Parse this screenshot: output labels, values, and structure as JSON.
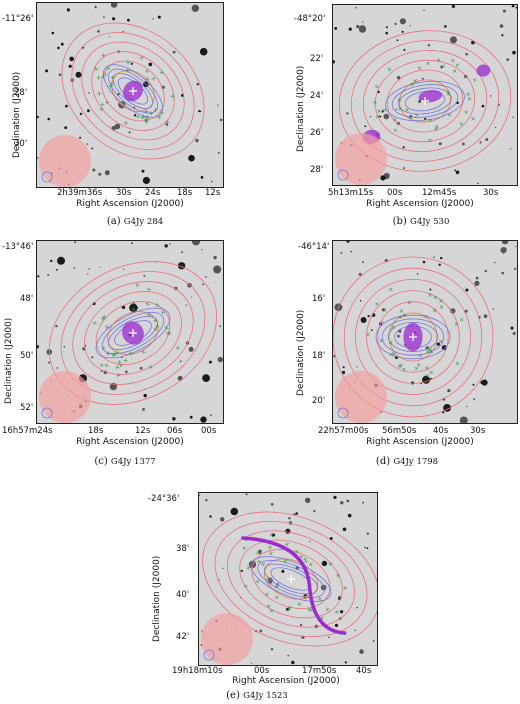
{
  "panels": [
    {
      "id": "a",
      "caption_letter": "(a)",
      "caption_name": "G4Jy 284",
      "ylabel": "Declination (J2000)",
      "xlabel": "Right Ascension (J2000)",
      "yticks": [
        "-11°26'",
        "28'",
        "30'"
      ],
      "xticks": [
        "2h39m36s",
        "30s",
        "24s",
        "18s",
        "12s"
      ]
    },
    {
      "id": "b",
      "caption_letter": "(b)",
      "caption_name": "G4Jy 530",
      "ylabel": "Declination (J2000)",
      "xlabel": "Right Ascension (J2000)",
      "yticks": [
        "-48°20'",
        "22'",
        "24'",
        "26'",
        "28'"
      ],
      "xticks": [
        "5h13m15s",
        "00s",
        "12m45s",
        "30s"
      ]
    },
    {
      "id": "c",
      "caption_letter": "(c)",
      "caption_name": "G4Jy 1377",
      "ylabel": "Declination (J2000)",
      "xlabel": "Right Ascension (J2000)",
      "yticks": [
        "-13°46'",
        "48'",
        "50'",
        "52'"
      ],
      "xticks": [
        "16h57m24s",
        "18s",
        "12s",
        "06s",
        "00s"
      ]
    },
    {
      "id": "d",
      "caption_letter": "(d)",
      "caption_name": "G4Jy 1798",
      "ylabel": "Declination (J2000)",
      "xlabel": "Right Ascension (J2000)",
      "yticks": [
        "-46°14'",
        "16'",
        "18'",
        "20'"
      ],
      "xticks": [
        "22h57m00s",
        "56m50s",
        "40s",
        "30s"
      ]
    },
    {
      "id": "e",
      "caption_letter": "(e)",
      "caption_name": "G4Jy 1523",
      "ylabel": "Declination (J2000)",
      "xlabel": "Right Ascension (J2000)",
      "yticks": [
        "-24°36'",
        "38'",
        "40'",
        "42'"
      ],
      "xticks": [
        "19h18m10s",
        "00s",
        "17m50s",
        "40s"
      ]
    }
  ],
  "colors": {
    "background": "#ffffff",
    "image_gray": "#d6d6d6",
    "contour_red": "#e8707a",
    "contour_blue": "#6f78e0",
    "contour_yellow": "#e6e070",
    "contour_purple": "#9b2bd0",
    "marker_green": "#2f8f3f",
    "beam_fill": "#f3a0a0"
  }
}
